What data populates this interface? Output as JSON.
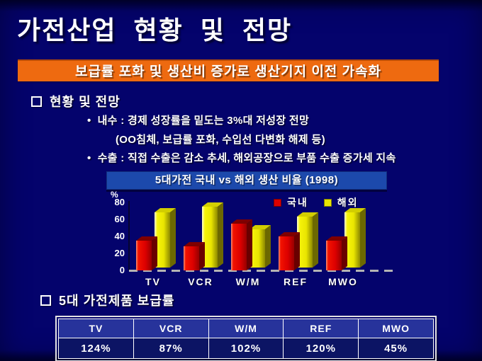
{
  "slide": {
    "title": "가전산업 현황 및 전망",
    "banner": "보급률 포화 및 생산비 증가로 생산기지 이전 가속화",
    "colors": {
      "background": "#04036c",
      "banner_bg": "#ee6a10",
      "chart_title_bg": "#1c49ac",
      "domestic_red": "#dd0000",
      "overseas_yellow": "#e9e500"
    }
  },
  "sections": [
    {
      "marker": "□",
      "title": "현황 및 전망"
    },
    {
      "marker": "□",
      "title": "5대 가전제품 보급률"
    }
  ],
  "bullets": [
    {
      "marker": "•",
      "text": "내수 : 경제 성장률을 밑도는 3%대 저성장 전망"
    },
    {
      "marker": "",
      "text": "(OO침체, 보급률 포화, 수입선 다변화 해제 등)"
    },
    {
      "marker": "•",
      "text": "수출 : 직접 수출은 감소 추세, 해외공장으로 부품 수출 증가세 지속"
    }
  ],
  "chart_data": {
    "type": "bar",
    "title": "5대가전 국내 vs 해외 생산 비율 (1998)",
    "ylabel": "%",
    "categories": [
      "TV",
      "VCR",
      "W/M",
      "REF",
      "MWO"
    ],
    "series": [
      {
        "name": "국내",
        "color": "#dd0000",
        "values": [
          35,
          28,
          55,
          40,
          35
        ]
      },
      {
        "name": "해외",
        "color": "#e9e500",
        "values": [
          65,
          72,
          45,
          60,
          65
        ]
      }
    ],
    "ylim": [
      0,
      80
    ],
    "yticks": [
      0,
      20,
      40,
      60,
      80
    ],
    "legend_position": "top-right",
    "grid": false,
    "style": "3d-bars"
  },
  "table": {
    "columns": [
      "TV",
      "VCR",
      "W/M",
      "REF",
      "MWO"
    ],
    "values": [
      "124%",
      "87%",
      "102%",
      "120%",
      "45%"
    ]
  }
}
